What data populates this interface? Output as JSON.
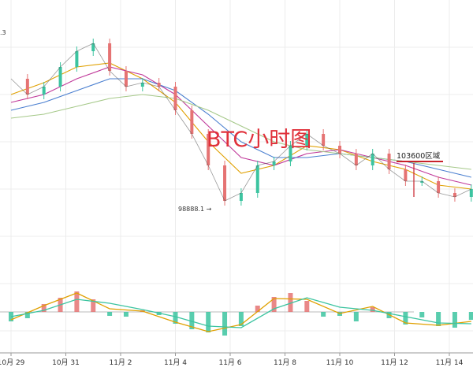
{
  "chart_data": {
    "type": "line",
    "title": "BTC小时图",
    "x_tick_labels": [
      "10月 29",
      "10月 31",
      "11月 2",
      "11月 4",
      "11月 6",
      "11月 8",
      "11月 10",
      "11月 12",
      "11月 14"
    ],
    "annotations": {
      "high_partial": ".3",
      "low_label": "98888.1 →",
      "zone_label": "103600区域"
    },
    "price_series": {
      "name": "",
      "points": [
        [
          0.0,
          118
        ],
        [
          0.3,
          114
        ],
        [
          0.6,
          116
        ],
        [
          0.9,
          121
        ],
        [
          1.2,
          125
        ],
        [
          1.5,
          127
        ],
        [
          1.8,
          120
        ],
        [
          2.1,
          116
        ],
        [
          2.4,
          117
        ],
        [
          2.7,
          116
        ],
        [
          3.0,
          110
        ],
        [
          3.3,
          104
        ],
        [
          3.6,
          96
        ],
        [
          3.9,
          87
        ],
        [
          4.2,
          89
        ],
        [
          4.5,
          96
        ],
        [
          4.8,
          97
        ],
        [
          5.1,
          101
        ],
        [
          5.4,
          104
        ],
        [
          5.7,
          101
        ],
        [
          6.0,
          99
        ],
        [
          6.3,
          96
        ],
        [
          6.6,
          99
        ],
        [
          6.9,
          95
        ],
        [
          7.2,
          92
        ],
        [
          7.5,
          92
        ],
        [
          7.8,
          89
        ],
        [
          8.1,
          88
        ],
        [
          8.4,
          90
        ]
      ]
    },
    "ma_lines": [
      {
        "color": "#e0a000",
        "points": [
          [
            0.0,
            114
          ],
          [
            0.6,
            117
          ],
          [
            1.2,
            121
          ],
          [
            1.8,
            122
          ],
          [
            2.4,
            118
          ],
          [
            3.0,
            112
          ],
          [
            3.6,
            102
          ],
          [
            4.2,
            94
          ],
          [
            4.8,
            96
          ],
          [
            5.4,
            101
          ],
          [
            6.0,
            100
          ],
          [
            6.6,
            97
          ],
          [
            7.2,
            95
          ],
          [
            7.8,
            91
          ],
          [
            8.4,
            90
          ]
        ]
      },
      {
        "color": "#c0399a",
        "points": [
          [
            0.0,
            112
          ],
          [
            0.6,
            114
          ],
          [
            1.2,
            118
          ],
          [
            1.8,
            121
          ],
          [
            2.4,
            119
          ],
          [
            3.0,
            114
          ],
          [
            3.6,
            106
          ],
          [
            4.2,
            98
          ],
          [
            4.8,
            96
          ],
          [
            5.4,
            99
          ],
          [
            6.0,
            100
          ],
          [
            6.6,
            98
          ],
          [
            7.2,
            96
          ],
          [
            7.8,
            93
          ],
          [
            8.4,
            91
          ]
        ]
      },
      {
        "color": "#4a7fd0",
        "points": [
          [
            0.0,
            110
          ],
          [
            0.6,
            112
          ],
          [
            1.2,
            115
          ],
          [
            1.8,
            118
          ],
          [
            2.4,
            118
          ],
          [
            3.0,
            115
          ],
          [
            3.6,
            109
          ],
          [
            4.2,
            102
          ],
          [
            4.8,
            98
          ],
          [
            5.4,
            98
          ],
          [
            6.0,
            99
          ],
          [
            6.6,
            98
          ],
          [
            7.2,
            97
          ],
          [
            7.8,
            95
          ],
          [
            8.4,
            93
          ]
        ]
      },
      {
        "color": "#a6c98a",
        "points": [
          [
            0.0,
            108
          ],
          [
            0.6,
            109
          ],
          [
            1.2,
            111
          ],
          [
            1.8,
            113
          ],
          [
            2.4,
            114
          ],
          [
            3.0,
            113
          ],
          [
            3.6,
            110
          ],
          [
            4.2,
            106
          ],
          [
            4.8,
            102
          ],
          [
            5.4,
            100
          ],
          [
            6.0,
            99
          ],
          [
            6.6,
            98
          ],
          [
            7.2,
            97
          ],
          [
            7.8,
            96
          ],
          [
            8.4,
            95
          ]
        ]
      }
    ],
    "macd": {
      "histogram": [
        [
          0.0,
          -1.2
        ],
        [
          0.3,
          -0.8
        ],
        [
          0.6,
          1.0
        ],
        [
          0.9,
          1.8
        ],
        [
          1.2,
          2.6
        ],
        [
          1.5,
          1.6
        ],
        [
          1.8,
          -0.5
        ],
        [
          2.1,
          -0.6
        ],
        [
          2.4,
          0.2
        ],
        [
          2.7,
          -0.4
        ],
        [
          3.0,
          -1.5
        ],
        [
          3.3,
          -2.2
        ],
        [
          3.6,
          -2.6
        ],
        [
          3.9,
          -3.0
        ],
        [
          4.2,
          -1.8
        ],
        [
          4.5,
          0.8
        ],
        [
          4.8,
          1.9
        ],
        [
          5.1,
          2.4
        ],
        [
          5.4,
          1.4
        ],
        [
          5.7,
          -0.6
        ],
        [
          6.0,
          -0.5
        ],
        [
          6.3,
          -1.2
        ],
        [
          6.6,
          0.6
        ],
        [
          6.9,
          -0.8
        ],
        [
          7.2,
          -1.6
        ],
        [
          7.5,
          -0.7
        ],
        [
          7.8,
          -1.8
        ],
        [
          8.1,
          -2.0
        ],
        [
          8.4,
          -1.0
        ]
      ],
      "dif": [
        [
          0.0,
          -1.0
        ],
        [
          0.6,
          0.8
        ],
        [
          1.2,
          2.4
        ],
        [
          1.8,
          0.4
        ],
        [
          2.4,
          0.1
        ],
        [
          3.0,
          -1.3
        ],
        [
          3.6,
          -2.5
        ],
        [
          4.2,
          -1.6
        ],
        [
          4.8,
          1.7
        ],
        [
          5.4,
          1.6
        ],
        [
          6.0,
          -0.2
        ],
        [
          6.6,
          0.7
        ],
        [
          7.2,
          -1.4
        ],
        [
          7.8,
          -1.7
        ],
        [
          8.4,
          -1.2
        ]
      ],
      "dea": [
        [
          0.0,
          -0.6
        ],
        [
          0.6,
          0.2
        ],
        [
          1.2,
          1.6
        ],
        [
          1.8,
          1.1
        ],
        [
          2.4,
          0.3
        ],
        [
          3.0,
          -0.6
        ],
        [
          3.6,
          -1.8
        ],
        [
          4.2,
          -2.0
        ],
        [
          4.8,
          0.4
        ],
        [
          5.4,
          1.8
        ],
        [
          6.0,
          0.6
        ],
        [
          6.6,
          0.2
        ],
        [
          7.2,
          -0.6
        ],
        [
          7.8,
          -1.4
        ],
        [
          8.4,
          -1.5
        ]
      ]
    },
    "colors": {
      "up": "#3cc4a0",
      "down": "#e57373",
      "hist_up": "#e57373",
      "hist_down": "#3cc4a0",
      "dif": "#e0a000",
      "dea": "#3cc4a0",
      "title": "#e0303a",
      "zone_line": "#c8222a",
      "grid": "#ececec",
      "axis": "#999999"
    }
  }
}
